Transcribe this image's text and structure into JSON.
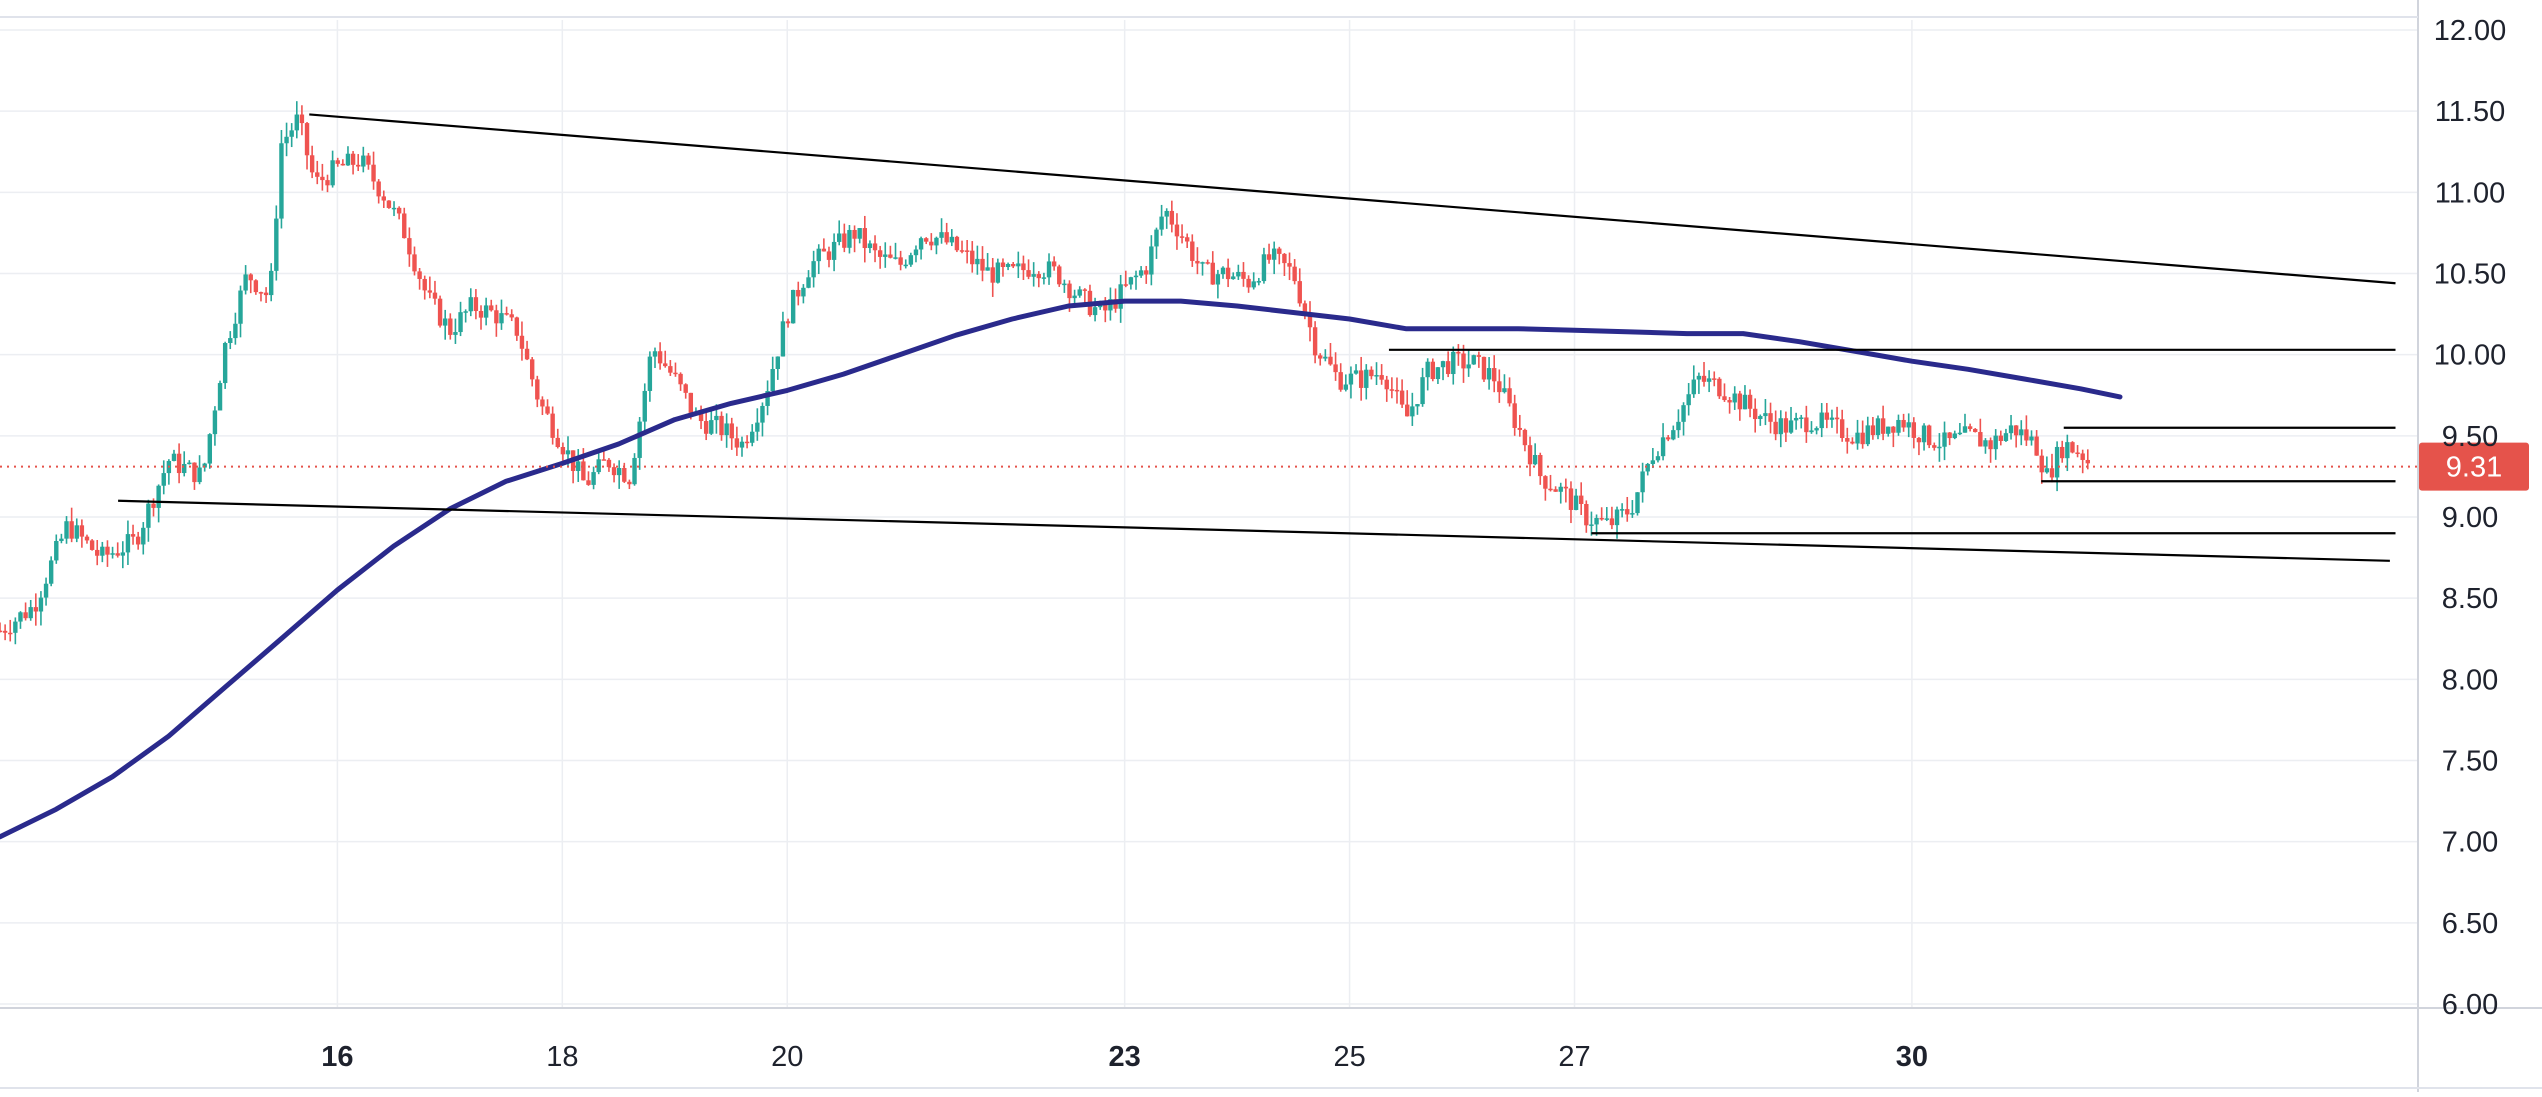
{
  "chart_data": {
    "type": "candlestick",
    "title": "",
    "xlabel": "",
    "ylabel": "",
    "ylim": [
      6.0,
      12.0
    ],
    "y_ticks": [
      "12.00",
      "11.50",
      "11.00",
      "10.50",
      "10.00",
      "9.50",
      "9.00",
      "8.50",
      "8.00",
      "7.50",
      "7.00",
      "6.50",
      "6.00"
    ],
    "y_tick_values": [
      12.0,
      11.5,
      11.0,
      10.5,
      10.0,
      9.5,
      9.0,
      8.5,
      8.0,
      7.5,
      7.0,
      6.5,
      6.0
    ],
    "x_range": [
      13.0,
      34.5
    ],
    "x_ticks": [
      {
        "label": "16",
        "day": 16,
        "bold": true
      },
      {
        "label": "18",
        "day": 18,
        "bold": false
      },
      {
        "label": "20",
        "day": 20,
        "bold": false
      },
      {
        "label": "23",
        "day": 23,
        "bold": true
      },
      {
        "label": "25",
        "day": 25,
        "bold": false
      },
      {
        "label": "27",
        "day": 27,
        "bold": false
      },
      {
        "label": "30",
        "day": 30,
        "bold": true
      }
    ],
    "grid": true,
    "current_price": {
      "label": "9.31",
      "value": 9.31,
      "color": "#e5534b"
    },
    "colors": {
      "up": "#26a69a",
      "down": "#ef5350",
      "ma": "#2a2a8c",
      "lines": "#000000",
      "grid": "#eceef2"
    },
    "price_path": [
      [
        13.0,
        8.3
      ],
      [
        13.3,
        8.45
      ],
      [
        13.6,
        8.95
      ],
      [
        13.9,
        8.75
      ],
      [
        14.2,
        8.85
      ],
      [
        14.5,
        9.35
      ],
      [
        14.8,
        9.25
      ],
      [
        15.0,
        10.05
      ],
      [
        15.2,
        10.5
      ],
      [
        15.4,
        10.35
      ],
      [
        15.5,
        11.3
      ],
      [
        15.65,
        11.45
      ],
      [
        15.8,
        11.05
      ],
      [
        16.0,
        11.15
      ],
      [
        16.2,
        11.2
      ],
      [
        16.4,
        11.0
      ],
      [
        16.6,
        10.75
      ],
      [
        16.8,
        10.35
      ],
      [
        17.0,
        10.15
      ],
      [
        17.2,
        10.3
      ],
      [
        17.4,
        10.25
      ],
      [
        17.6,
        10.15
      ],
      [
        17.8,
        9.7
      ],
      [
        18.0,
        9.45
      ],
      [
        18.2,
        9.2
      ],
      [
        18.4,
        9.35
      ],
      [
        18.6,
        9.25
      ],
      [
        18.8,
        10.05
      ],
      [
        19.0,
        9.85
      ],
      [
        19.2,
        9.6
      ],
      [
        19.4,
        9.55
      ],
      [
        19.6,
        9.45
      ],
      [
        19.8,
        9.75
      ],
      [
        20.0,
        10.25
      ],
      [
        20.2,
        10.55
      ],
      [
        20.4,
        10.65
      ],
      [
        20.6,
        10.75
      ],
      [
        20.8,
        10.6
      ],
      [
        21.0,
        10.55
      ],
      [
        21.2,
        10.75
      ],
      [
        21.4,
        10.7
      ],
      [
        21.6,
        10.6
      ],
      [
        21.8,
        10.5
      ],
      [
        22.0,
        10.5
      ],
      [
        22.2,
        10.55
      ],
      [
        22.4,
        10.5
      ],
      [
        22.6,
        10.35
      ],
      [
        22.8,
        10.25
      ],
      [
        23.0,
        10.4
      ],
      [
        23.2,
        10.55
      ],
      [
        23.35,
        10.9
      ],
      [
        23.5,
        10.75
      ],
      [
        23.7,
        10.5
      ],
      [
        23.9,
        10.5
      ],
      [
        24.1,
        10.45
      ],
      [
        24.3,
        10.6
      ],
      [
        24.5,
        10.5
      ],
      [
        24.7,
        10.05
      ],
      [
        24.9,
        9.85
      ],
      [
        25.1,
        9.85
      ],
      [
        25.3,
        9.9
      ],
      [
        25.5,
        9.6
      ],
      [
        25.7,
        9.9
      ],
      [
        25.9,
        9.95
      ],
      [
        26.1,
        9.95
      ],
      [
        26.3,
        9.85
      ],
      [
        26.5,
        9.55
      ],
      [
        26.7,
        9.25
      ],
      [
        26.9,
        9.15
      ],
      [
        27.1,
        9.0
      ],
      [
        27.3,
        8.95
      ],
      [
        27.5,
        9.05
      ],
      [
        27.7,
        9.4
      ],
      [
        27.9,
        9.6
      ],
      [
        28.1,
        9.85
      ],
      [
        28.3,
        9.8
      ],
      [
        28.5,
        9.7
      ],
      [
        28.7,
        9.6
      ],
      [
        28.9,
        9.55
      ],
      [
        29.1,
        9.6
      ],
      [
        29.3,
        9.55
      ],
      [
        29.5,
        9.5
      ],
      [
        29.7,
        9.55
      ],
      [
        29.9,
        9.6
      ],
      [
        30.1,
        9.5
      ],
      [
        30.3,
        9.45
      ],
      [
        30.5,
        9.5
      ],
      [
        30.7,
        9.45
      ],
      [
        30.9,
        9.55
      ],
      [
        31.1,
        9.45
      ],
      [
        31.2,
        9.25
      ],
      [
        31.35,
        9.45
      ],
      [
        31.5,
        9.4
      ],
      [
        31.6,
        9.31
      ]
    ],
    "moving_average": [
      [
        13.0,
        7.03
      ],
      [
        13.5,
        7.2
      ],
      [
        14.0,
        7.4
      ],
      [
        14.5,
        7.65
      ],
      [
        15.0,
        7.95
      ],
      [
        15.5,
        8.25
      ],
      [
        16.0,
        8.55
      ],
      [
        16.5,
        8.82
      ],
      [
        17.0,
        9.05
      ],
      [
        17.5,
        9.22
      ],
      [
        18.0,
        9.33
      ],
      [
        18.5,
        9.45
      ],
      [
        19.0,
        9.6
      ],
      [
        19.5,
        9.7
      ],
      [
        20.0,
        9.78
      ],
      [
        20.5,
        9.88
      ],
      [
        21.0,
        10.0
      ],
      [
        21.5,
        10.12
      ],
      [
        22.0,
        10.22
      ],
      [
        22.5,
        10.3
      ],
      [
        23.0,
        10.33
      ],
      [
        23.5,
        10.33
      ],
      [
        24.0,
        10.3
      ],
      [
        24.5,
        10.26
      ],
      [
        25.0,
        10.22
      ],
      [
        25.5,
        10.16
      ],
      [
        26.0,
        10.16
      ],
      [
        26.5,
        10.16
      ],
      [
        27.0,
        10.15
      ],
      [
        27.5,
        10.14
      ],
      [
        28.0,
        10.13
      ],
      [
        28.5,
        10.13
      ],
      [
        29.0,
        10.08
      ],
      [
        29.5,
        10.02
      ],
      [
        30.0,
        9.96
      ],
      [
        30.5,
        9.91
      ],
      [
        31.0,
        9.85
      ],
      [
        31.5,
        9.79
      ],
      [
        31.85,
        9.74
      ]
    ],
    "trend_lines": [
      {
        "name": "upper-trendline",
        "x1": 15.75,
        "y1": 11.48,
        "x2": 34.3,
        "y2": 10.44
      },
      {
        "name": "lower-trendline",
        "x1": 14.05,
        "y1": 9.1,
        "x2": 34.25,
        "y2": 8.73
      }
    ],
    "level_lines": [
      {
        "name": "resistance-level-10",
        "x1": 25.35,
        "x2": 34.3,
        "y": 10.03
      },
      {
        "name": "resistance-level-9-55",
        "x1": 31.35,
        "x2": 34.3,
        "y": 9.55
      },
      {
        "name": "support-level-9-22",
        "x1": 31.15,
        "x2": 34.3,
        "y": 9.22
      },
      {
        "name": "support-level-8-9",
        "x1": 27.15,
        "x2": 34.3,
        "y": 8.9
      }
    ]
  }
}
